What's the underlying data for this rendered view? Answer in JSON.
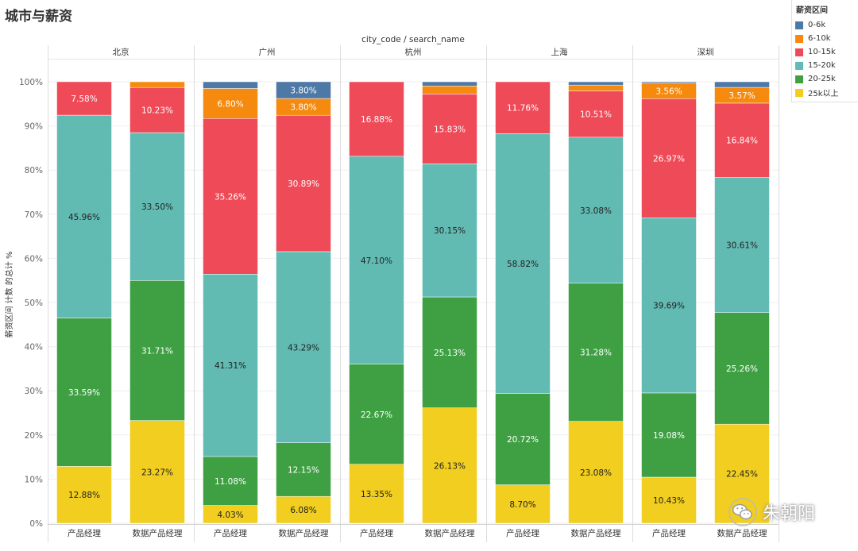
{
  "title": "城市与薪资",
  "chart_data": {
    "type": "bar",
    "stacked": true,
    "column_header": "city_code / search_name",
    "ylabel": "薪资区间 计数 的总计 %",
    "ylim": [
      0,
      100
    ],
    "y_ticks": [
      "0%",
      "10%",
      "20%",
      "30%",
      "40%",
      "50%",
      "60%",
      "70%",
      "80%",
      "90%",
      "100%"
    ],
    "cities": [
      "北京",
      "广州",
      "杭州",
      "上海",
      "深圳"
    ],
    "categories": [
      "产品经理",
      "数据产品经理"
    ],
    "series": [
      {
        "name": "25k以上",
        "color": "#f1ce1f"
      },
      {
        "name": "20-25k",
        "color": "#3fa043"
      },
      {
        "name": "15-20k",
        "color": "#62bbb3"
      },
      {
        "name": "10-15k",
        "color": "#ef4a58"
      },
      {
        "name": "6-10k",
        "color": "#f58a0e"
      },
      {
        "name": "0-6k",
        "color": "#4e79a7"
      }
    ],
    "bars": [
      {
        "city": "北京",
        "job": "产品经理",
        "values": [
          12.88,
          33.59,
          45.96,
          7.58,
          0,
          0
        ],
        "labels": [
          "12.88%",
          "33.59%",
          "45.96%",
          "7.58%",
          "",
          ""
        ]
      },
      {
        "city": "北京",
        "job": "数据产品经理",
        "values": [
          23.27,
          31.71,
          33.5,
          10.23,
          1.29,
          0
        ],
        "labels": [
          "23.27%",
          "31.71%",
          "33.50%",
          "10.23%",
          "",
          ""
        ]
      },
      {
        "city": "广州",
        "job": "产品经理",
        "values": [
          4.03,
          11.08,
          41.31,
          35.26,
          6.8,
          1.52
        ],
        "labels": [
          "4.03%",
          "11.08%",
          "41.31%",
          "35.26%",
          "6.80%",
          ""
        ]
      },
      {
        "city": "广州",
        "job": "数据产品经理",
        "values": [
          6.08,
          12.15,
          43.29,
          30.89,
          3.8,
          3.8
        ],
        "labels": [
          "6.08%",
          "12.15%",
          "43.29%",
          "30.89%",
          "3.80%",
          "3.80%"
        ]
      },
      {
        "city": "杭州",
        "job": "产品经理",
        "values": [
          13.35,
          22.67,
          47.1,
          16.88,
          0,
          0
        ],
        "labels": [
          "13.35%",
          "22.67%",
          "47.10%",
          "16.88%",
          "",
          ""
        ]
      },
      {
        "city": "杭州",
        "job": "数据产品经理",
        "values": [
          26.13,
          25.13,
          30.15,
          15.83,
          1.8,
          0.96
        ],
        "labels": [
          "26.13%",
          "25.13%",
          "30.15%",
          "15.83%",
          "",
          ""
        ]
      },
      {
        "city": "上海",
        "job": "产品经理",
        "values": [
          8.7,
          20.72,
          58.82,
          11.76,
          0,
          0
        ],
        "labels": [
          "8.70%",
          "20.72%",
          "58.82%",
          "11.76%",
          "",
          ""
        ]
      },
      {
        "city": "上海",
        "job": "数据产品经理",
        "values": [
          23.08,
          31.28,
          33.08,
          10.51,
          1.3,
          0.75
        ],
        "labels": [
          "23.08%",
          "31.28%",
          "33.08%",
          "10.51%",
          "",
          ""
        ]
      },
      {
        "city": "深圳",
        "job": "产品经理",
        "values": [
          10.43,
          19.08,
          39.69,
          26.97,
          3.56,
          0.27
        ],
        "labels": [
          "10.43%",
          "19.08%",
          "39.69%",
          "26.97%",
          "3.56%",
          ""
        ]
      },
      {
        "city": "深圳",
        "job": "数据产品经理",
        "values": [
          22.45,
          25.26,
          30.61,
          16.84,
          3.57,
          1.27
        ],
        "labels": [
          "22.45%",
          "25.26%",
          "30.61%",
          "16.84%",
          "3.57%",
          ""
        ]
      }
    ]
  },
  "legend": {
    "title": "薪资区间",
    "items": [
      {
        "label": "0-6k",
        "color": "#4e79a7"
      },
      {
        "label": "6-10k",
        "color": "#f58a0e"
      },
      {
        "label": "10-15k",
        "color": "#ef4a58"
      },
      {
        "label": "15-20k",
        "color": "#62bbb3"
      },
      {
        "label": "20-25k",
        "color": "#3fa043"
      },
      {
        "label": "25k以上",
        "color": "#f1ce1f"
      }
    ]
  },
  "watermark": {
    "text": "朱朝阳",
    "icon": "wechat-icon"
  }
}
